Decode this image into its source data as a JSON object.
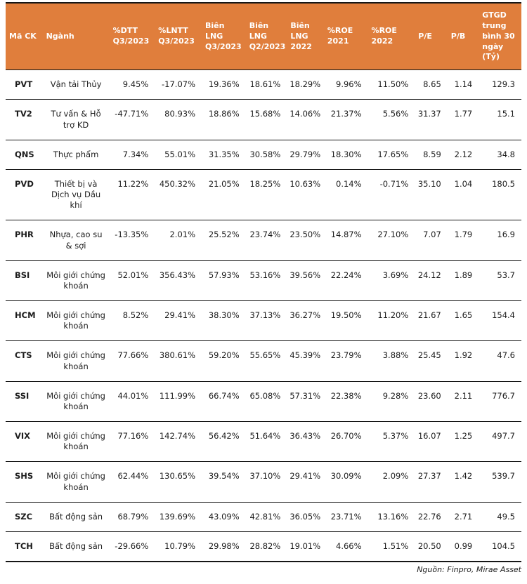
{
  "colors": {
    "header_bg": "#E07E3C",
    "header_text": "#ffffff",
    "border": "#161616",
    "body_text": "#1c1c1c"
  },
  "footer": {
    "source_label": "Nguồn: Finpro, Mirae Asset"
  },
  "chart_data": {
    "type": "table",
    "title": "",
    "columns": [
      "Mã CK",
      "Ngành",
      "%DTT Q3/2023",
      "%LNTT Q3/2023",
      "Biên LNG Q3/2023",
      "Biên LNG Q2/2023",
      "Biên LNG 2022",
      "%ROE 2021",
      "%ROE 2022",
      "P/E",
      "P/B",
      "GTGD trung bình 30 ngày (Tỷ)"
    ],
    "rows": [
      {
        "code": "PVT",
        "industry": "Vận tải Thủy",
        "metrics": [
          "9.45%",
          "-17.07%",
          "19.36%",
          "18.61%",
          "18.29%",
          "9.96%",
          "11.50%",
          "8.65",
          "1.14",
          "129.3"
        ]
      },
      {
        "code": "TV2",
        "industry": "Tư vấn & Hỗ trợ KD",
        "metrics": [
          "-47.71%",
          "80.93%",
          "18.86%",
          "15.68%",
          "14.06%",
          "21.37%",
          "5.56%",
          "31.37",
          "1.77",
          "15.1"
        ]
      },
      {
        "code": "QNS",
        "industry": "Thực phẩm",
        "metrics": [
          "7.34%",
          "55.01%",
          "31.35%",
          "30.58%",
          "29.79%",
          "18.30%",
          "17.65%",
          "8.59",
          "2.12",
          "34.8"
        ]
      },
      {
        "code": "PVD",
        "industry": "Thiết bị và Dịch vụ Dầu khí",
        "metrics": [
          "11.22%",
          "450.32%",
          "21.05%",
          "18.25%",
          "10.63%",
          "0.14%",
          "-0.71%",
          "35.10",
          "1.04",
          "180.5"
        ]
      },
      {
        "code": "PHR",
        "industry": "Nhựa, cao su & sợi",
        "metrics": [
          "-13.35%",
          "2.01%",
          "25.52%",
          "23.74%",
          "23.50%",
          "14.87%",
          "27.10%",
          "7.07",
          "1.79",
          "16.9"
        ]
      },
      {
        "code": "BSI",
        "industry": "Môi giới chứng khoán",
        "metrics": [
          "52.01%",
          "356.43%",
          "57.93%",
          "53.16%",
          "39.56%",
          "22.24%",
          "3.69%",
          "24.12",
          "1.89",
          "53.7"
        ]
      },
      {
        "code": "HCM",
        "industry": "Môi giới chứng khoán",
        "metrics": [
          "8.52%",
          "29.41%",
          "38.30%",
          "37.13%",
          "36.27%",
          "19.50%",
          "11.20%",
          "21.67",
          "1.65",
          "154.4"
        ]
      },
      {
        "code": "CTS",
        "industry": "Môi giới chứng khoán",
        "metrics": [
          "77.66%",
          "380.61%",
          "59.20%",
          "55.65%",
          "45.39%",
          "23.79%",
          "3.88%",
          "25.45",
          "1.92",
          "47.6"
        ]
      },
      {
        "code": "SSI",
        "industry": "Môi giới chứng khoán",
        "metrics": [
          "44.01%",
          "111.99%",
          "66.74%",
          "65.08%",
          "57.31%",
          "22.38%",
          "9.28%",
          "23.60",
          "2.11",
          "776.7"
        ]
      },
      {
        "code": "VIX",
        "industry": "Môi giới chứng khoán",
        "metrics": [
          "77.16%",
          "142.74%",
          "56.42%",
          "51.64%",
          "36.43%",
          "26.70%",
          "5.37%",
          "16.07",
          "1.25",
          "497.7"
        ]
      },
      {
        "code": "SHS",
        "industry": "Môi giới chứng khoán",
        "metrics": [
          "62.44%",
          "130.65%",
          "39.54%",
          "37.10%",
          "29.41%",
          "30.09%",
          "2.09%",
          "27.37",
          "1.42",
          "539.7"
        ]
      },
      {
        "code": "SZC",
        "industry": "Bất động sản",
        "metrics": [
          "68.79%",
          "139.69%",
          "43.09%",
          "42.81%",
          "36.05%",
          "23.71%",
          "13.16%",
          "22.76",
          "2.71",
          "49.5"
        ]
      },
      {
        "code": "TCH",
        "industry": "Bất động sản",
        "metrics": [
          "-29.66%",
          "10.79%",
          "29.98%",
          "28.82%",
          "19.01%",
          "4.66%",
          "1.51%",
          "20.50",
          "0.99",
          "104.5"
        ]
      }
    ]
  }
}
